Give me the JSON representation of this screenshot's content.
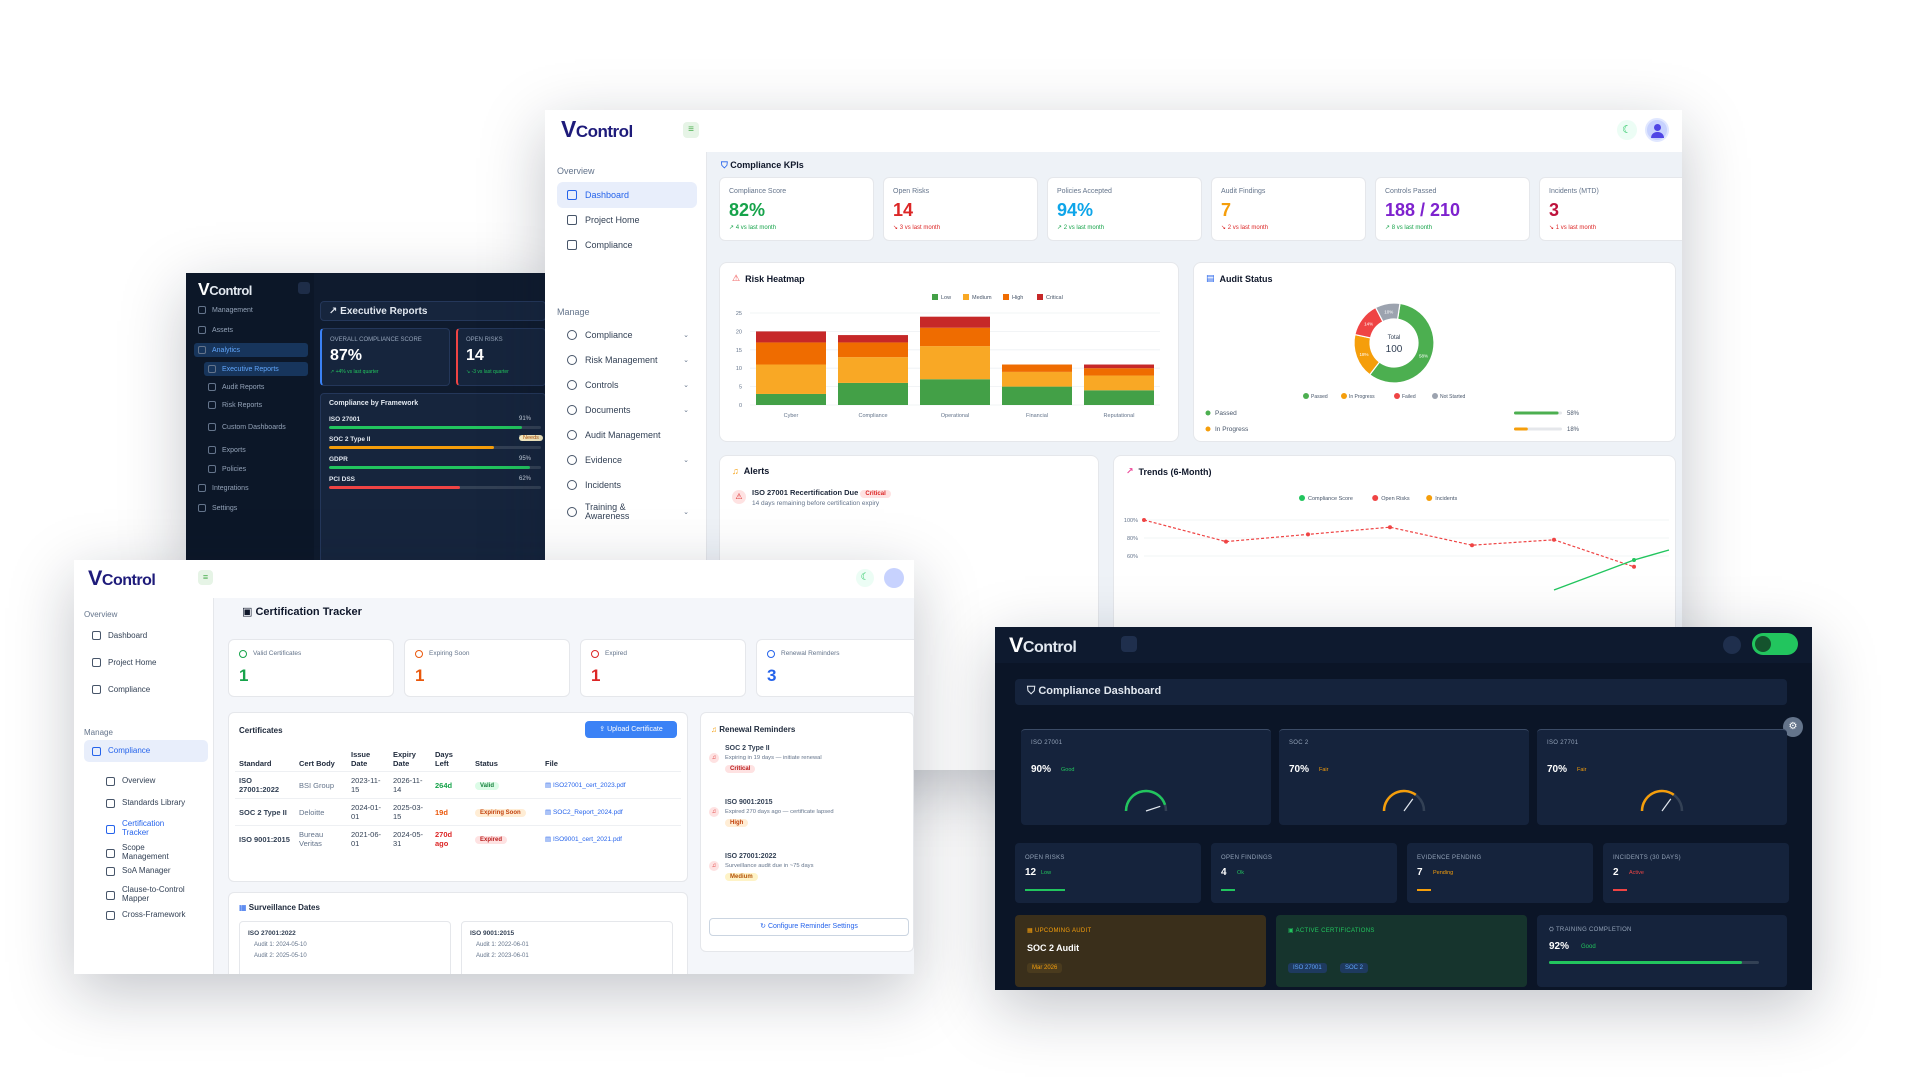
{
  "brand": {
    "logo_v": "V",
    "logo_rest": "Control",
    "accent": "#1e1b7a"
  },
  "exec": {
    "nav": [
      "Management",
      "Assets",
      "Analytics",
      "Executive Reports",
      "Audit Reports",
      "Risk Reports",
      "Custom Dashboards",
      "Exports",
      "Policies",
      "Integrations",
      "Settings"
    ],
    "title": "Executive Reports",
    "kpis": [
      {
        "label": "Overall Compliance Score",
        "value": "87%",
        "change": "↗ +4% vs last quarter",
        "color": "#3b82f6"
      },
      {
        "label": "Open Risks",
        "value": "14",
        "change": "↘ -3 vs last quarter",
        "color": "#ef4444"
      }
    ],
    "framework_title": "Compliance by Framework",
    "frameworks": [
      {
        "name": "ISO 27001",
        "pct": "91%",
        "fill": 0.91,
        "color": "#22c55e",
        "tag": ""
      },
      {
        "name": "SOC 2 Type II",
        "pct": "78%",
        "fill": 0.78,
        "color": "#f59e0b",
        "tag": "Needs"
      },
      {
        "name": "GDPR",
        "pct": "95%",
        "fill": 0.95,
        "color": "#22c55e",
        "tag": ""
      },
      {
        "name": "PCI DSS",
        "pct": "62%",
        "fill": 0.62,
        "color": "#ef4444",
        "tag": ""
      }
    ]
  },
  "main": {
    "overview_label": "Overview",
    "manage_label": "Manage",
    "overview_items": [
      "Dashboard",
      "Project Home",
      "Compliance"
    ],
    "manage_items": [
      "Compliance",
      "Risk Management",
      "Controls",
      "Documents",
      "Audit Management",
      "Evidence",
      "Incidents",
      "Training & Awareness"
    ],
    "kpi_title": "Compliance KPIs",
    "kpis": [
      {
        "label": "Compliance Score",
        "value": "82%",
        "change": "↗ 4 vs last month",
        "color": "#16a34a",
        "chg_color": "#16a34a"
      },
      {
        "label": "Open Risks",
        "value": "14",
        "change": "↘ 3 vs last month",
        "color": "#dc2626",
        "chg_color": "#dc2626"
      },
      {
        "label": "Policies Accepted",
        "value": "94%",
        "change": "↗ 2 vs last month",
        "color": "#0ea5e9",
        "chg_color": "#16a34a"
      },
      {
        "label": "Audit Findings",
        "value": "7",
        "change": "↘ 2 vs last month",
        "color": "#f59e0b",
        "chg_color": "#dc2626"
      },
      {
        "label": "Controls Passed",
        "value": "188 / 210",
        "change": "↗ 8 vs last month",
        "color": "#7e22ce",
        "chg_color": "#16a34a"
      },
      {
        "label": "Incidents (MTD)",
        "value": "3",
        "change": "↘ 1 vs last month",
        "color": "#be123c",
        "chg_color": "#dc2626"
      }
    ],
    "heatmap_title": "Risk Heatmap",
    "audit_title": "Audit Status",
    "alerts_title": "Alerts",
    "alert": {
      "title": "ISO 27001 Recertification Due",
      "badge": "Critical",
      "desc": "14 days remaining before certification expiry"
    },
    "trends_title": "Trends (6-Month)"
  },
  "cert": {
    "overview_label": "Overview",
    "manage_label": "Manage",
    "overview_items": [
      "Dashboard",
      "Project Home",
      "Compliance"
    ],
    "manage_items": [
      "Compliance",
      "Overview",
      "Standards Library",
      "Certification Tracker",
      "Scope Management",
      "SoA Manager",
      "Clause-to-Control Mapper",
      "Cross-Framework"
    ],
    "title": "Certification Tracker",
    "stats": [
      {
        "label": "Valid Certificates",
        "value": "1",
        "color": "#16a34a"
      },
      {
        "label": "Expiring Soon",
        "value": "1",
        "color": "#ea580c"
      },
      {
        "label": "Expired",
        "value": "1",
        "color": "#dc2626"
      },
      {
        "label": "Renewal Reminders",
        "value": "3",
        "color": "#2563eb"
      }
    ],
    "certs_title": "Certificates",
    "upload_label": "Upload Certificate",
    "columns": [
      "Standard",
      "Cert Body",
      "Issue Date",
      "Expiry Date",
      "Days Left",
      "Status",
      "File"
    ],
    "rows": [
      {
        "standard": "ISO 27001:2022",
        "body": "BSI Group",
        "issue": "2023-11-15",
        "expiry": "2026-11-14",
        "days": "264d",
        "days_color": "#16a34a",
        "status": "Valid",
        "status_bg": "#dcfce7",
        "status_fg": "#15803d",
        "file": "ISO27001_cert_2023.pdf"
      },
      {
        "standard": "SOC 2 Type II",
        "body": "Deloitte",
        "issue": "2024-01-01",
        "expiry": "2025-03-15",
        "days": "19d",
        "days_color": "#ea580c",
        "status": "Expiring Soon",
        "status_bg": "#ffedd5",
        "status_fg": "#c2410c",
        "file": "SOC2_Report_2024.pdf"
      },
      {
        "standard": "ISO 9001:2015",
        "body": "Bureau Veritas",
        "issue": "2021-06-01",
        "expiry": "2024-05-31",
        "days": "270d ago",
        "days_color": "#dc2626",
        "status": "Expired",
        "status_bg": "#fee2e2",
        "status_fg": "#b91c1c",
        "file": "ISO9001_cert_2021.pdf"
      }
    ],
    "reminders_title": "Renewal Reminders",
    "reminders": [
      {
        "title": "SOC 2 Type II",
        "desc": "Expiring in 19 days — initiate renewal",
        "tag": "Critical",
        "tag_bg": "#fee2e2",
        "tag_fg": "#b91c1c"
      },
      {
        "title": "ISO 9001:2015",
        "desc": "Expired 270 days ago — certificate lapsed",
        "tag": "High",
        "tag_bg": "#ffedd5",
        "tag_fg": "#c2410c"
      },
      {
        "title": "ISO 27001:2022",
        "desc": "Surveillance audit due in ~75 days",
        "tag": "Medium",
        "tag_bg": "#fef3c7",
        "tag_fg": "#b45309"
      }
    ],
    "configure_label": "Configure Reminder Settings",
    "surveillance_title": "Surveillance Dates",
    "surveillance": [
      {
        "std": "ISO 27001:2022",
        "a1": "Audit 1: 2024-05-10",
        "a2": "Audit 2: 2025-05-10"
      },
      {
        "std": "ISO 9001:2015",
        "a1": "Audit 1: 2022-06-01",
        "a2": "Audit 2: 2023-06-01"
      }
    ]
  },
  "dark": {
    "title": "Compliance Dashboard",
    "gauges": [
      {
        "label": "ISO 27001",
        "value": "90%",
        "status": "Good",
        "status_color": "#22c55e",
        "level": 0.9
      },
      {
        "label": "SOC 2",
        "value": "70%",
        "status": "Fair",
        "status_color": "#f59e0b",
        "level": 0.7
      },
      {
        "label": "ISO 27701",
        "value": "70%",
        "status": "Fair",
        "status_color": "#f59e0b",
        "level": 0.7
      }
    ],
    "stats": [
      {
        "label": "Open Risks",
        "value": "12",
        "status": "Low",
        "status_color": "#22c55e",
        "bar": "#22c55e"
      },
      {
        "label": "Open Findings",
        "value": "4",
        "status": "Ok",
        "status_color": "#22c55e",
        "bar": "#22c55e"
      },
      {
        "label": "Evidence Pending",
        "value": "7",
        "status": "Pending",
        "status_color": "#f59e0b",
        "bar": "#f59e0b"
      },
      {
        "label": "Incidents (30 Days)",
        "value": "2",
        "status": "Active",
        "status_color": "#ef4444",
        "bar": "#ef4444"
      }
    ],
    "upcoming": {
      "label": "Upcoming Audit",
      "value": "SOC 2 Audit",
      "date": "Mar 2026"
    },
    "certs": {
      "label": "Active Certifications",
      "tags": [
        "ISO 27001",
        "SOC 2"
      ]
    },
    "training": {
      "label": "Training Completion",
      "value": "92%",
      "status": "Good",
      "level": 0.92
    }
  },
  "chart_data": [
    {
      "type": "bar",
      "title": "Risk Heatmap",
      "categories": [
        "Cyber",
        "Compliance",
        "Operational",
        "Financial",
        "Reputational"
      ],
      "ylim": [
        0,
        25
      ],
      "yticks": [
        0,
        5,
        10,
        15,
        20,
        25
      ],
      "series": [
        {
          "name": "Low",
          "color": "#43a047",
          "values": [
            3,
            6,
            7,
            5,
            4
          ]
        },
        {
          "name": "Medium",
          "color": "#f9a825",
          "values": [
            8,
            7,
            9,
            4,
            4
          ]
        },
        {
          "name": "High",
          "color": "#ef6c00",
          "values": [
            6,
            4,
            5,
            2,
            2
          ]
        },
        {
          "name": "Critical",
          "color": "#c62828",
          "values": [
            3,
            2,
            3,
            0,
            1
          ]
        }
      ]
    },
    {
      "type": "pie",
      "title": "Audit Status",
      "center_label": "Total",
      "center_value": "100",
      "slices": [
        {
          "name": "Passed",
          "value": 58,
          "color": "#4caf50",
          "label": "58%"
        },
        {
          "name": "In Progress",
          "value": 18,
          "color": "#f59e0b",
          "label": "18%"
        },
        {
          "name": "Failed",
          "value": 14,
          "color": "#ef4444",
          "label": "14%"
        },
        {
          "name": "Not Started",
          "value": 10,
          "color": "#9ca3af",
          "label": "10%"
        }
      ]
    },
    {
      "type": "line",
      "title": "Trends (6-Month)",
      "yticks": [
        "100%",
        "80%",
        "60%"
      ],
      "series": [
        {
          "name": "Compliance Score",
          "color": "#22c55e"
        },
        {
          "name": "Open Risks",
          "color": "#ef4444",
          "values": [
            100,
            88,
            92,
            96,
            86,
            89,
            74
          ]
        },
        {
          "name": "Incidents",
          "color": "#f59e0b"
        }
      ]
    }
  ]
}
